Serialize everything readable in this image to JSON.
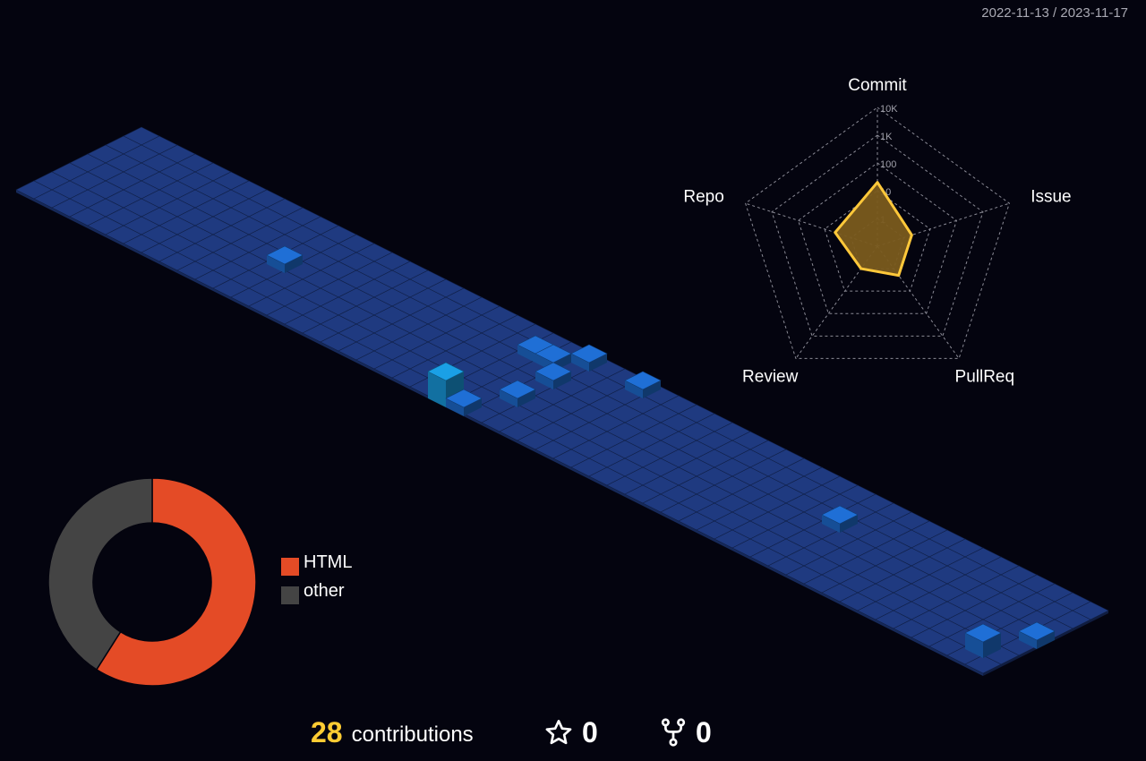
{
  "header": {
    "period": "2022-11-13 / 2023-11-17"
  },
  "footer": {
    "contributions_count": "28",
    "contributions_label": "contributions",
    "stars_count": "0",
    "forks_count": "0",
    "star_icon": "star-icon",
    "fork_icon": "fork-icon"
  },
  "colors": {
    "background": "#04040f",
    "cell_empty": "#1f3a80",
    "cell_active": "#1f6fd6",
    "cell_high": "#1aa0e6",
    "radar_fill": "#7a5b1e",
    "radar_stroke": "#ffc83a",
    "html": "#e44b26",
    "other": "#444444",
    "contrib_number": "#ffcc33"
  },
  "chart_data": [
    {
      "type": "heatmap",
      "title": "",
      "layout": "isometric 3D contribution calendar",
      "weeks": 54,
      "days_per_week": 7,
      "active_cells": [
        {
          "week": 11,
          "day": 3,
          "level": 1
        },
        {
          "week": 23,
          "day": 6,
          "level": 3
        },
        {
          "week": 25,
          "day": 2,
          "level": 1
        },
        {
          "week": 24,
          "day": 1,
          "level": 1
        },
        {
          "week": 25,
          "day": 0,
          "level": 1
        },
        {
          "week": 23,
          "day": 1,
          "level": 1
        },
        {
          "week": 25,
          "day": 4,
          "level": 1
        },
        {
          "week": 24,
          "day": 6,
          "level": 1
        },
        {
          "week": 28,
          "day": 0,
          "level": 1
        },
        {
          "week": 41,
          "day": 2,
          "level": 1
        },
        {
          "week": 52,
          "day": 5,
          "level": 2
        },
        {
          "week": 53,
          "day": 3,
          "level": 1
        }
      ]
    },
    {
      "type": "radar",
      "title": "",
      "axes": [
        "Commit",
        "Issue",
        "PullReq",
        "Review",
        "Repo"
      ],
      "scale": "log",
      "tick_labels": [
        "1",
        "10",
        "100",
        "1K",
        "10K"
      ],
      "values": [
        20,
        2,
        2,
        1,
        4
      ]
    },
    {
      "type": "pie",
      "title": "",
      "donut": true,
      "labels": [
        "HTML",
        "other"
      ],
      "values": [
        59,
        41
      ],
      "colors": [
        "#e44b26",
        "#444444"
      ],
      "legend_position": "right"
    }
  ]
}
